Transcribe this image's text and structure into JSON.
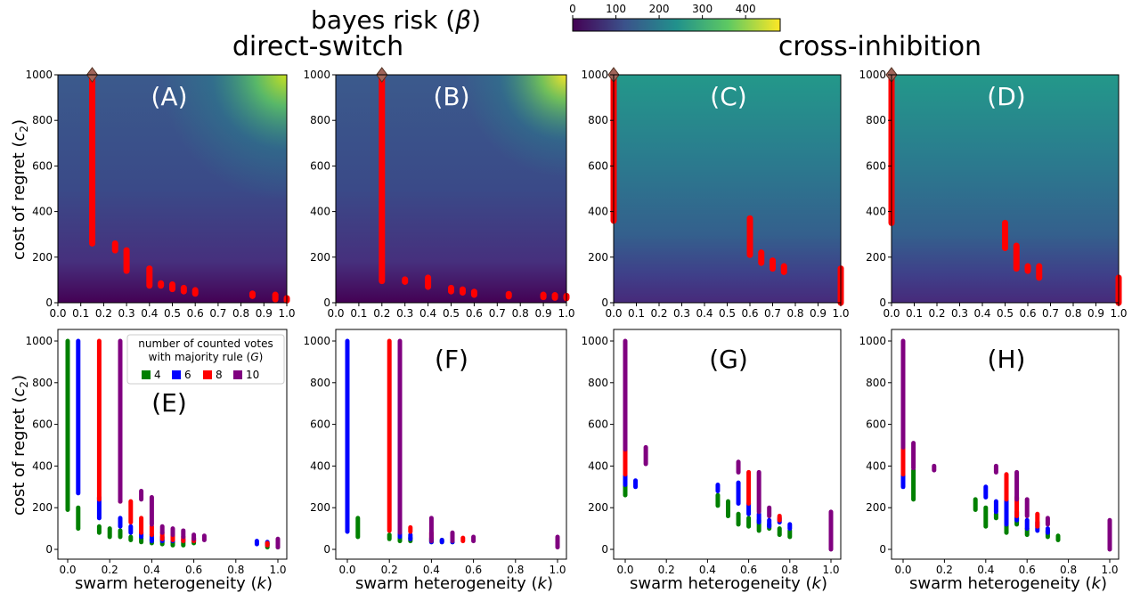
{
  "figure": {
    "colorbar_label": "bayes risk (",
    "colorbar_symbol": "β",
    "colorbar_close": ")",
    "colorbar_ticks": [
      "0",
      "100",
      "200",
      "300",
      "400"
    ],
    "group_titles": [
      "direct-switch",
      "cross-inhibition"
    ],
    "ylabel_main": "cost of regret (",
    "ylabel_sym": "c",
    "ylabel_sub": "2",
    "ylabel_close": ")",
    "xlabel_main": "swarm heterogeneity (",
    "xlabel_sym": "k",
    "xlabel_close": ")",
    "legend": {
      "title_line1": "number of counted votes",
      "title_line2": "with majority rule (",
      "title_sym": "G",
      "title_close": ")",
      "entries": [
        {
          "label": "4",
          "color": "#008000"
        },
        {
          "label": "6",
          "color": "#0000ff"
        },
        {
          "label": "8",
          "color": "#ff0000"
        },
        {
          "label": "10",
          "color": "#800080"
        }
      ]
    },
    "top_x_ticks": [
      "0.0",
      "0.1",
      "0.2",
      "0.3",
      "0.4",
      "0.5",
      "0.6",
      "0.7",
      "0.8",
      "0.9",
      "1.0"
    ],
    "top_y_ticks": [
      "0",
      "200",
      "400",
      "600",
      "800",
      "1000"
    ],
    "bottom_x_ticks": [
      "0.0",
      "0.2",
      "0.4",
      "0.6",
      "0.8",
      "1.0"
    ],
    "bottom_y_ticks": [
      "0",
      "200",
      "400",
      "600",
      "800",
      "1000"
    ]
  },
  "chart_data": [
    {
      "type": "heatmap",
      "panel": "(A)",
      "group": "direct-switch",
      "xlim": [
        0,
        1
      ],
      "ylim": [
        0,
        1000
      ],
      "risk_range": [
        0,
        480
      ],
      "marker": {
        "k": 0.15,
        "c2": 1000
      },
      "optimal_ranges": [
        {
          "k": 0.15,
          "c2": [
            260,
            1000
          ]
        },
        {
          "k": 0.25,
          "c2": [
            230,
            260
          ]
        },
        {
          "k": 0.3,
          "c2": [
            140,
            230
          ]
        },
        {
          "k": 0.4,
          "c2": [
            75,
            150
          ]
        },
        {
          "k": 0.45,
          "c2": [
            75,
            85
          ]
        },
        {
          "k": 0.5,
          "c2": [
            60,
            80
          ]
        },
        {
          "k": 0.55,
          "c2": [
            50,
            65
          ]
        },
        {
          "k": 0.6,
          "c2": [
            40,
            55
          ]
        },
        {
          "k": 0.85,
          "c2": [
            30,
            40
          ]
        },
        {
          "k": 0.95,
          "c2": [
            15,
            35
          ]
        },
        {
          "k": 1.0,
          "c2": [
            10,
            20
          ]
        }
      ]
    },
    {
      "type": "heatmap",
      "panel": "(B)",
      "group": "direct-switch",
      "xlim": [
        0,
        1
      ],
      "ylim": [
        0,
        1000
      ],
      "risk_range": [
        0,
        480
      ],
      "marker": {
        "k": 0.2,
        "c2": 1000
      },
      "optimal_ranges": [
        {
          "k": 0.2,
          "c2": [
            95,
            1000
          ]
        },
        {
          "k": 0.3,
          "c2": [
            92,
            102
          ]
        },
        {
          "k": 0.4,
          "c2": [
            70,
            110
          ]
        },
        {
          "k": 0.5,
          "c2": [
            50,
            65
          ]
        },
        {
          "k": 0.55,
          "c2": [
            45,
            58
          ]
        },
        {
          "k": 0.6,
          "c2": [
            35,
            48
          ]
        },
        {
          "k": 0.75,
          "c2": [
            28,
            38
          ]
        },
        {
          "k": 0.9,
          "c2": [
            25,
            35
          ]
        },
        {
          "k": 0.95,
          "c2": [
            22,
            33
          ]
        },
        {
          "k": 1.0,
          "c2": [
            20,
            30
          ]
        }
      ]
    },
    {
      "type": "heatmap",
      "panel": "(C)",
      "group": "cross-inhibition",
      "xlim": [
        0,
        1
      ],
      "ylim": [
        0,
        1000
      ],
      "risk_range": [
        0,
        480
      ],
      "marker": {
        "k": 0.0,
        "c2": 1000
      },
      "optimal_ranges": [
        {
          "k": 0.0,
          "c2": [
            360,
            1000
          ]
        },
        {
          "k": 0.6,
          "c2": [
            210,
            370
          ]
        },
        {
          "k": 0.65,
          "c2": [
            175,
            220
          ]
        },
        {
          "k": 0.7,
          "c2": [
            150,
            185
          ]
        },
        {
          "k": 0.75,
          "c2": [
            135,
            160
          ]
        },
        {
          "k": 1.0,
          "c2": [
            0,
            150
          ]
        }
      ]
    },
    {
      "type": "heatmap",
      "panel": "(D)",
      "group": "cross-inhibition",
      "xlim": [
        0,
        1
      ],
      "ylim": [
        0,
        1000
      ],
      "risk_range": [
        0,
        480
      ],
      "marker": {
        "k": 0.0,
        "c2": 1000
      },
      "optimal_ranges": [
        {
          "k": 0.0,
          "c2": [
            350,
            1000
          ]
        },
        {
          "k": 0.5,
          "c2": [
            240,
            350
          ]
        },
        {
          "k": 0.55,
          "c2": [
            150,
            250
          ]
        },
        {
          "k": 0.6,
          "c2": [
            140,
            160
          ]
        },
        {
          "k": 0.65,
          "c2": [
            110,
            160
          ]
        },
        {
          "k": 1.0,
          "c2": [
            0,
            110
          ]
        }
      ]
    },
    {
      "type": "scatter",
      "panel": "(E)",
      "group": "direct-switch",
      "xlim": [
        0,
        1
      ],
      "ylim": [
        0,
        1000
      ],
      "series": [
        {
          "name": "4",
          "segments": [
            [
              0.0,
              190,
              1000
            ],
            [
              0.05,
              100,
              200
            ],
            [
              0.15,
              80,
              110
            ],
            [
              0.2,
              60,
              100
            ],
            [
              0.25,
              60,
              90
            ],
            [
              0.3,
              45,
              60
            ],
            [
              0.35,
              35,
              55
            ],
            [
              0.4,
              30,
              50
            ],
            [
              0.45,
              25,
              45
            ],
            [
              0.5,
              20,
              40
            ],
            [
              0.55,
              20,
              35
            ],
            [
              0.6,
              30,
              40
            ],
            [
              0.95,
              10,
              30
            ],
            [
              1.0,
              10,
              25
            ]
          ]
        },
        {
          "name": "6",
          "segments": [
            [
              0.05,
              270,
              1000
            ],
            [
              0.15,
              150,
              250
            ],
            [
              0.25,
              110,
              150
            ],
            [
              0.3,
              80,
              110
            ],
            [
              0.35,
              60,
              80
            ],
            [
              0.4,
              40,
              70
            ],
            [
              0.45,
              40,
              60
            ],
            [
              0.5,
              40,
              55
            ],
            [
              0.55,
              40,
              50
            ],
            [
              0.6,
              40,
              50
            ],
            [
              0.9,
              25,
              40
            ],
            [
              0.95,
              20,
              35
            ]
          ]
        },
        {
          "name": "8",
          "segments": [
            [
              0.15,
              240,
              1000
            ],
            [
              0.25,
              230,
              250
            ],
            [
              0.3,
              130,
              230
            ],
            [
              0.35,
              80,
              150
            ],
            [
              0.4,
              70,
              110
            ],
            [
              0.45,
              50,
              80
            ],
            [
              0.5,
              45,
              70
            ],
            [
              0.55,
              40,
              60
            ],
            [
              0.6,
              40,
              55
            ],
            [
              0.95,
              20,
              30
            ]
          ]
        },
        {
          "name": "10",
          "segments": [
            [
              0.25,
              230,
              1000
            ],
            [
              0.35,
              240,
              280
            ],
            [
              0.4,
              120,
              250
            ],
            [
              0.45,
              80,
              110
            ],
            [
              0.5,
              70,
              100
            ],
            [
              0.55,
              60,
              90
            ],
            [
              0.6,
              50,
              70
            ],
            [
              0.65,
              45,
              65
            ],
            [
              1.0,
              10,
              50
            ]
          ]
        }
      ]
    },
    {
      "type": "scatter",
      "panel": "(F)",
      "group": "direct-switch",
      "xlim": [
        0,
        1
      ],
      "ylim": [
        0,
        1000
      ],
      "series": [
        {
          "name": "4",
          "segments": [
            [
              0.0,
              90,
              110
            ],
            [
              0.05,
              60,
              150
            ],
            [
              0.2,
              50,
              70
            ],
            [
              0.25,
              40,
              60
            ],
            [
              0.3,
              40,
              55
            ],
            [
              0.4,
              35,
              50
            ],
            [
              0.45,
              35,
              45
            ],
            [
              0.5,
              35,
              45
            ]
          ]
        },
        {
          "name": "6",
          "segments": [
            [
              0.0,
              85,
              1000
            ],
            [
              0.25,
              60,
              90
            ],
            [
              0.3,
              50,
              70
            ],
            [
              0.4,
              35,
              55
            ],
            [
              0.45,
              35,
              45
            ],
            [
              0.5,
              35,
              50
            ]
          ]
        },
        {
          "name": "8",
          "segments": [
            [
              0.2,
              90,
              1000
            ],
            [
              0.3,
              85,
              105
            ],
            [
              0.4,
              55,
              80
            ],
            [
              0.55,
              40,
              55
            ],
            [
              1.0,
              30,
              50
            ]
          ]
        },
        {
          "name": "10",
          "segments": [
            [
              0.25,
              80,
              1000
            ],
            [
              0.4,
              40,
              150
            ],
            [
              0.5,
              40,
              80
            ],
            [
              0.6,
              40,
              60
            ],
            [
              1.0,
              10,
              60
            ]
          ]
        }
      ]
    },
    {
      "type": "scatter",
      "panel": "(G)",
      "group": "cross-inhibition",
      "xlim": [
        0,
        1
      ],
      "ylim": [
        0,
        1000
      ],
      "series": [
        {
          "name": "4",
          "segments": [
            [
              0.0,
              260,
              320
            ],
            [
              0.45,
              210,
              260
            ],
            [
              0.5,
              160,
              230
            ],
            [
              0.55,
              120,
              170
            ],
            [
              0.6,
              110,
              150
            ],
            [
              0.65,
              90,
              140
            ],
            [
              0.7,
              100,
              120
            ],
            [
              0.75,
              70,
              100
            ],
            [
              0.8,
              60,
              90
            ]
          ]
        },
        {
          "name": "6",
          "segments": [
            [
              0.0,
              310,
              360
            ],
            [
              0.05,
              300,
              330
            ],
            [
              0.45,
              280,
              310
            ],
            [
              0.55,
              220,
              320
            ],
            [
              0.6,
              170,
              220
            ],
            [
              0.65,
              130,
              170
            ],
            [
              0.7,
              110,
              140
            ],
            [
              0.75,
              130,
              150
            ],
            [
              0.8,
              100,
              120
            ]
          ]
        },
        {
          "name": "8",
          "segments": [
            [
              0.0,
              360,
              480
            ],
            [
              0.6,
              220,
              370
            ],
            [
              0.75,
              140,
              160
            ]
          ]
        },
        {
          "name": "10",
          "segments": [
            [
              0.0,
              480,
              1000
            ],
            [
              0.1,
              410,
              490
            ],
            [
              0.55,
              370,
              420
            ],
            [
              0.65,
              180,
              370
            ],
            [
              0.7,
              160,
              200
            ],
            [
              1.0,
              0,
              180
            ]
          ]
        }
      ]
    },
    {
      "type": "scatter",
      "panel": "(H)",
      "group": "cross-inhibition",
      "xlim": [
        0,
        1
      ],
      "ylim": [
        0,
        1000
      ],
      "series": [
        {
          "name": "4",
          "segments": [
            [
              0.05,
              240,
              380
            ],
            [
              0.35,
              190,
              240
            ],
            [
              0.4,
              110,
              200
            ],
            [
              0.45,
              150,
              170
            ],
            [
              0.5,
              80,
              130
            ],
            [
              0.55,
              120,
              150
            ],
            [
              0.6,
              70,
              100
            ],
            [
              0.7,
              60,
              90
            ],
            [
              0.75,
              45,
              65
            ]
          ]
        },
        {
          "name": "6",
          "segments": [
            [
              0.0,
              300,
              360
            ],
            [
              0.4,
              250,
              300
            ],
            [
              0.45,
              180,
              230
            ],
            [
              0.5,
              120,
              240
            ],
            [
              0.55,
              140,
              180
            ],
            [
              0.6,
              100,
              140
            ],
            [
              0.65,
              90,
              130
            ],
            [
              0.7,
              80,
              100
            ]
          ]
        },
        {
          "name": "8",
          "segments": [
            [
              0.0,
              360,
              490
            ],
            [
              0.5,
              240,
              360
            ],
            [
              0.55,
              160,
              250
            ],
            [
              0.65,
              110,
              170
            ]
          ]
        },
        {
          "name": "10",
          "segments": [
            [
              0.0,
              490,
              1000
            ],
            [
              0.05,
              390,
              510
            ],
            [
              0.15,
              380,
              400
            ],
            [
              0.45,
              370,
              400
            ],
            [
              0.55,
              240,
              370
            ],
            [
              0.6,
              160,
              240
            ],
            [
              0.7,
              120,
              150
            ],
            [
              1.0,
              0,
              140
            ]
          ]
        }
      ]
    }
  ]
}
